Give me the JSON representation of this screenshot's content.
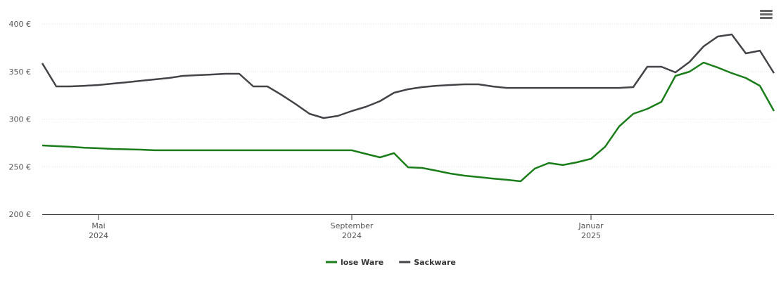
{
  "chart_data": {
    "type": "line",
    "categories": [
      null,
      null,
      null,
      null,
      [
        "Mai",
        "2024"
      ],
      null,
      null,
      null,
      null,
      null,
      null,
      null,
      null,
      null,
      null,
      null,
      null,
      null,
      null,
      null,
      null,
      null,
      [
        "September",
        "2024"
      ],
      null,
      null,
      null,
      null,
      null,
      null,
      null,
      null,
      null,
      null,
      null,
      null,
      null,
      null,
      null,
      null,
      [
        "Januar",
        "2025"
      ],
      null,
      null,
      null,
      null,
      null,
      null,
      null,
      null,
      null,
      null,
      null,
      null,
      null
    ],
    "series": [
      {
        "name": "lose Ware",
        "color": "#1a7d1a",
        "values": [
          272.3,
          271.6,
          270.9,
          270,
          269.4,
          268.6,
          268.3,
          267.9,
          267.2,
          267.2,
          267.2,
          267.2,
          267.2,
          267.2,
          267.2,
          267.2,
          267.2,
          267.2,
          267.2,
          267.2,
          267.2,
          267.2,
          267.2,
          263.5,
          259.8,
          264.2,
          249.4,
          248.7,
          245.8,
          242.8,
          240.6,
          239.1,
          237.6,
          236.2,
          234.7,
          248,
          253.9,
          251.7,
          254.6,
          258.3,
          270.9,
          292.3,
          305.5,
          310.7,
          318.1,
          345.4,
          349.8,
          359.4,
          354.2,
          348.3,
          343.2,
          335,
          308.5
        ]
      },
      {
        "name": "Sackware",
        "color": "#434348",
        "values": [
          358.7,
          334.3,
          334.3,
          335,
          335.8,
          337.3,
          338.7,
          340.2,
          341.7,
          343.2,
          345.4,
          346.1,
          346.8,
          347.6,
          347.6,
          334.3,
          334.3,
          325.5,
          315.9,
          305.5,
          301.1,
          303.3,
          308.5,
          312.9,
          318.8,
          327.7,
          331.4,
          333.6,
          335,
          335.8,
          336.5,
          336.5,
          334.3,
          332.8,
          332.8,
          332.8,
          332.8,
          332.8,
          332.8,
          332.8,
          332.8,
          332.8,
          333.6,
          355,
          355,
          349.1,
          360.1,
          376.4,
          386.7,
          388.9,
          369,
          371.9,
          348.3
        ]
      }
    ],
    "ylim": [
      200,
      400
    ],
    "yticks": [
      {
        "value": 200,
        "label": "200 €"
      },
      {
        "value": 250,
        "label": "250 €"
      },
      {
        "value": 300,
        "label": "300 €"
      },
      {
        "value": 350,
        "label": "350 €"
      },
      {
        "value": 400,
        "label": "400 €"
      }
    ],
    "grid": true,
    "legend": "bottom"
  }
}
